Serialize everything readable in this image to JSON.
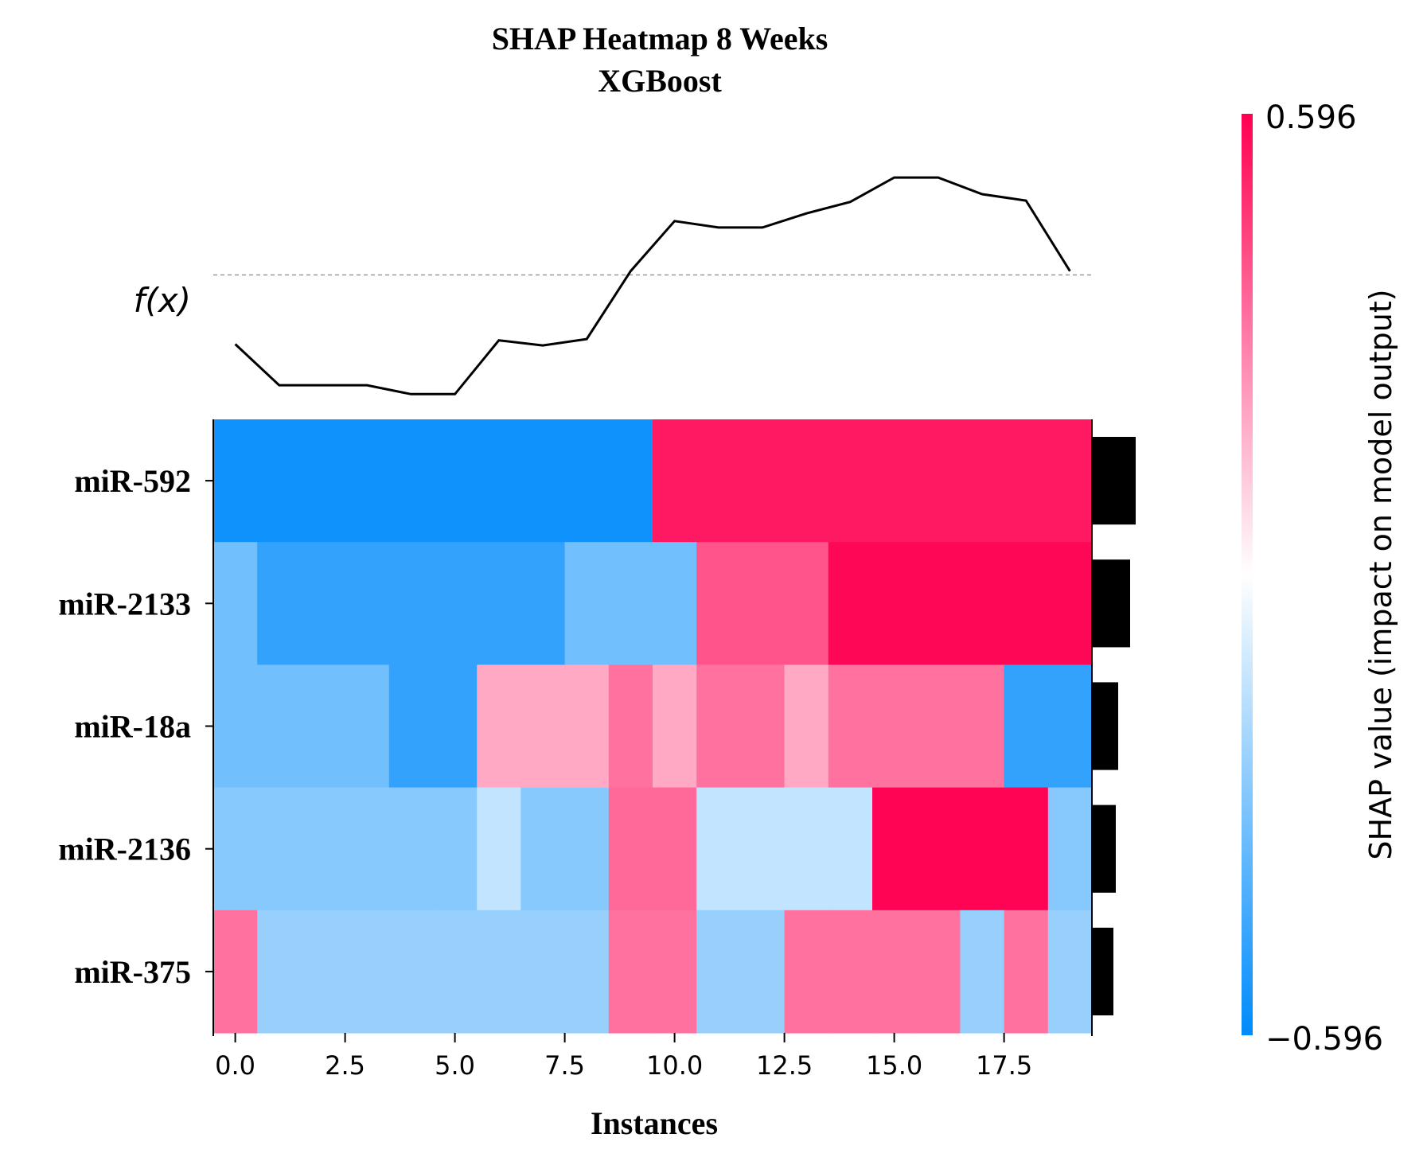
{
  "chart_data": {
    "type": "heatmap",
    "title_line1": "SHAP Heatmap 8 Weeks",
    "title_line2": "XGBoost",
    "xlabel": "Instances",
    "x_ticks": [
      "0.0",
      "2.5",
      "5.0",
      "7.5",
      "10.0",
      "12.5",
      "15.0",
      "17.5"
    ],
    "x_tick_values": [
      0,
      2.5,
      5,
      7.5,
      10,
      12.5,
      15,
      17.5
    ],
    "xlim": [
      -0.5,
      19.5
    ],
    "fx_label": "f(x)",
    "features": [
      "miR-592",
      "miR-2133",
      "miR-18a",
      "miR-2136",
      "miR-375"
    ],
    "instances": 20,
    "shap_values": [
      [
        -0.56,
        -0.56,
        -0.56,
        -0.56,
        -0.56,
        -0.56,
        -0.56,
        -0.56,
        -0.56,
        -0.56,
        0.54,
        0.54,
        0.54,
        0.54,
        0.54,
        0.54,
        0.54,
        0.54,
        0.54,
        0.54
      ],
      [
        -0.33,
        -0.48,
        -0.48,
        -0.48,
        -0.48,
        -0.48,
        -0.48,
        -0.48,
        -0.33,
        -0.33,
        -0.33,
        0.4,
        0.4,
        0.4,
        0.58,
        0.58,
        0.58,
        0.58,
        0.58,
        0.58
      ],
      [
        -0.33,
        -0.33,
        -0.33,
        -0.33,
        -0.48,
        -0.48,
        0.2,
        0.2,
        0.2,
        0.33,
        0.2,
        0.33,
        0.33,
        0.2,
        0.33,
        0.33,
        0.33,
        0.33,
        -0.48,
        -0.48
      ],
      [
        -0.28,
        -0.28,
        -0.28,
        -0.28,
        -0.28,
        -0.28,
        -0.14,
        -0.28,
        -0.28,
        0.35,
        0.35,
        -0.14,
        -0.14,
        -0.14,
        -0.14,
        0.59,
        0.59,
        0.59,
        0.59,
        -0.28
      ],
      [
        0.33,
        -0.24,
        -0.24,
        -0.24,
        -0.24,
        -0.24,
        -0.24,
        -0.24,
        -0.24,
        0.33,
        0.33,
        -0.24,
        -0.24,
        0.33,
        0.33,
        0.33,
        0.33,
        -0.24,
        0.33,
        -0.24
      ]
    ],
    "fx_values": [
      0.0,
      -0.32,
      -0.32,
      -0.32,
      -0.39,
      -0.39,
      0.03,
      -0.01,
      0.04,
      0.57,
      0.96,
      0.91,
      0.91,
      1.02,
      1.11,
      1.3,
      1.3,
      1.17,
      1.12,
      0.57
    ],
    "fx_base": 0.54,
    "fx_range": [
      -0.45,
      1.35
    ],
    "feature_importance": [
      0.55,
      0.48,
      0.33,
      0.3,
      0.27
    ],
    "colorbar": {
      "min_label": "−0.596",
      "max_label": "0.596",
      "label": "SHAP value (impact on model output)",
      "low_color": "#008bfb",
      "mid_color": "#ffffff",
      "high_color": "#ff0052"
    }
  }
}
